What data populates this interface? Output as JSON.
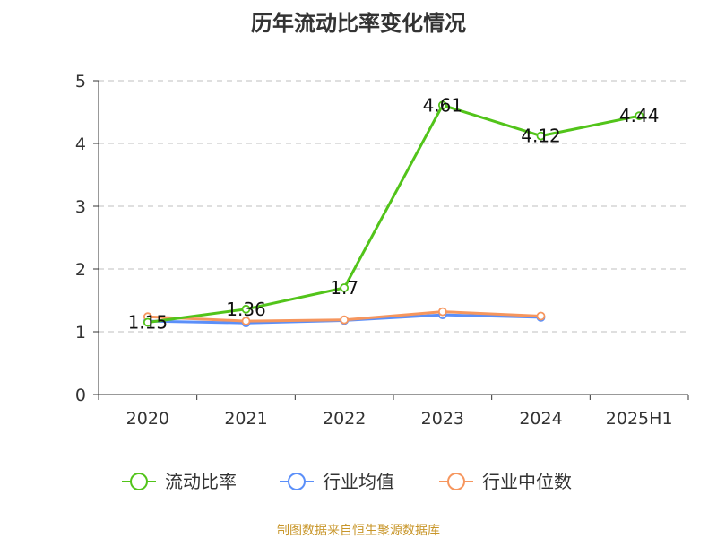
{
  "chart_data": {
    "type": "line",
    "title": "历年流动比率变化情况",
    "xlabel": "",
    "ylabel": "",
    "categories": [
      "2020",
      "2021",
      "2022",
      "2023",
      "2024",
      "2025H1"
    ],
    "ylim": [
      0,
      5
    ],
    "yticks": [
      0,
      1,
      2,
      3,
      4,
      5
    ],
    "grid": "horizontal dashed",
    "legend_position": "bottom",
    "series": [
      {
        "name": "流动比率",
        "color": "#52c41a",
        "values": [
          1.15,
          1.36,
          1.7,
          4.61,
          4.12,
          4.44
        ],
        "labels": [
          "1.15",
          "1.36",
          "1.7",
          "4.61",
          "4.12",
          "4.44"
        ]
      },
      {
        "name": "行业均值",
        "color": "#5b8ff9",
        "values": [
          1.17,
          1.14,
          1.18,
          1.27,
          1.23,
          null
        ]
      },
      {
        "name": "行业中位数",
        "color": "#f6965e",
        "values": [
          1.24,
          1.17,
          1.19,
          1.32,
          1.25,
          null
        ]
      }
    ]
  },
  "footer": {
    "source": "制图数据来自恒生聚源数据库"
  }
}
